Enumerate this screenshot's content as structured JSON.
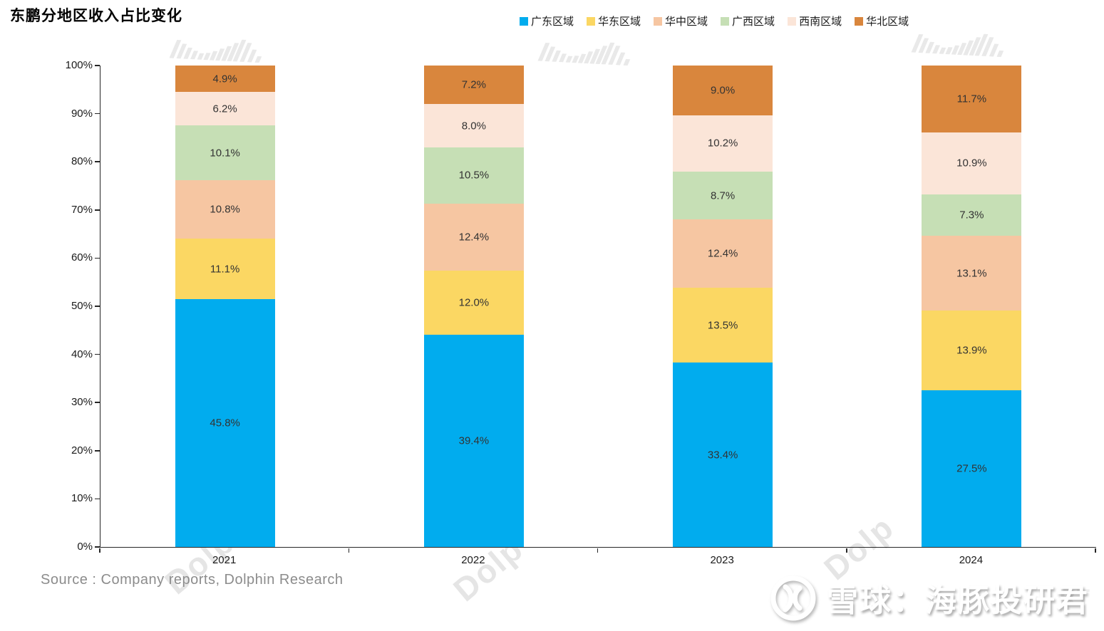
{
  "page": {
    "title": "东鹏分地区收入占比变化",
    "source": "Source : Company reports, Dolphin Research"
  },
  "watermark": {
    "tile": "Dolp",
    "corner": "RT"
  },
  "brand": {
    "name": "雪球：海豚投研君"
  },
  "chart_data": {
    "type": "bar",
    "stacked": true,
    "normalized_to_100": true,
    "title": "东鹏分地区收入占比变化",
    "categories": [
      "2021",
      "2022",
      "2023",
      "2024"
    ],
    "series": [
      {
        "name": "广东区域",
        "color": "#01ACEE",
        "values": [
          45.8,
          39.4,
          33.4,
          27.5
        ]
      },
      {
        "name": "华东区域",
        "color": "#FBD763",
        "values": [
          11.1,
          12.0,
          13.5,
          13.9
        ]
      },
      {
        "name": "华中区域",
        "color": "#F6C6A2",
        "values": [
          10.8,
          12.4,
          12.4,
          13.1
        ]
      },
      {
        "name": "广西区域",
        "color": "#C6DFB5",
        "values": [
          10.1,
          10.5,
          8.7,
          7.3
        ]
      },
      {
        "name": "西南区域",
        "color": "#FBE5D8",
        "values": [
          6.2,
          8.0,
          10.2,
          10.9
        ]
      },
      {
        "name": "华北区域",
        "color": "#D9863D",
        "values": [
          4.9,
          7.2,
          9.0,
          11.7
        ]
      }
    ],
    "y_ticks": [
      "0%",
      "10%",
      "20%",
      "30%",
      "40%",
      "50%",
      "60%",
      "70%",
      "80%",
      "90%",
      "100%"
    ],
    "ylim": [
      0,
      100
    ],
    "xlabel": "",
    "ylabel": "",
    "grid": false,
    "legend_position": "top-right",
    "axis_color": "#262626",
    "data_label_color": "#333333",
    "data_label_suffix": "%"
  }
}
